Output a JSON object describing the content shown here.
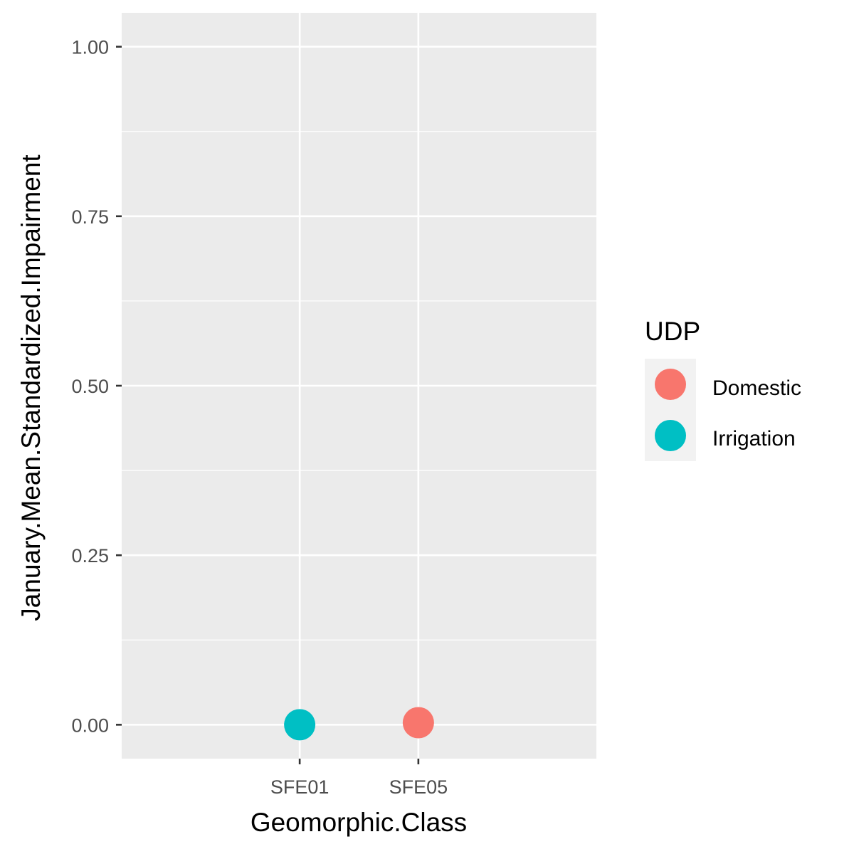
{
  "chart_data": {
    "type": "scatter",
    "xlabel": "Geomorphic.Class",
    "ylabel": "January.Mean.Standardized.Impairment",
    "categories": [
      "SFE01",
      "SFE05"
    ],
    "ylim": [
      -0.05,
      1.05
    ],
    "yticks": [
      0.0,
      0.25,
      0.5,
      0.75,
      1.0
    ],
    "ytick_labels": [
      "0.00",
      "0.25",
      "0.50",
      "0.75",
      "1.00"
    ],
    "grid": true,
    "legend": {
      "title": "UDP",
      "position": "right",
      "entries": [
        {
          "name": "Domestic",
          "color": "#F8766D"
        },
        {
          "name": "Irrigation",
          "color": "#00BFC4"
        }
      ]
    },
    "series": [
      {
        "name": "Domestic",
        "color": "#F8766D",
        "points": [
          {
            "x": "SFE05",
            "y": 0.003
          }
        ]
      },
      {
        "name": "Irrigation",
        "color": "#00BFC4",
        "points": [
          {
            "x": "SFE01",
            "y": 0.0
          }
        ]
      }
    ]
  }
}
